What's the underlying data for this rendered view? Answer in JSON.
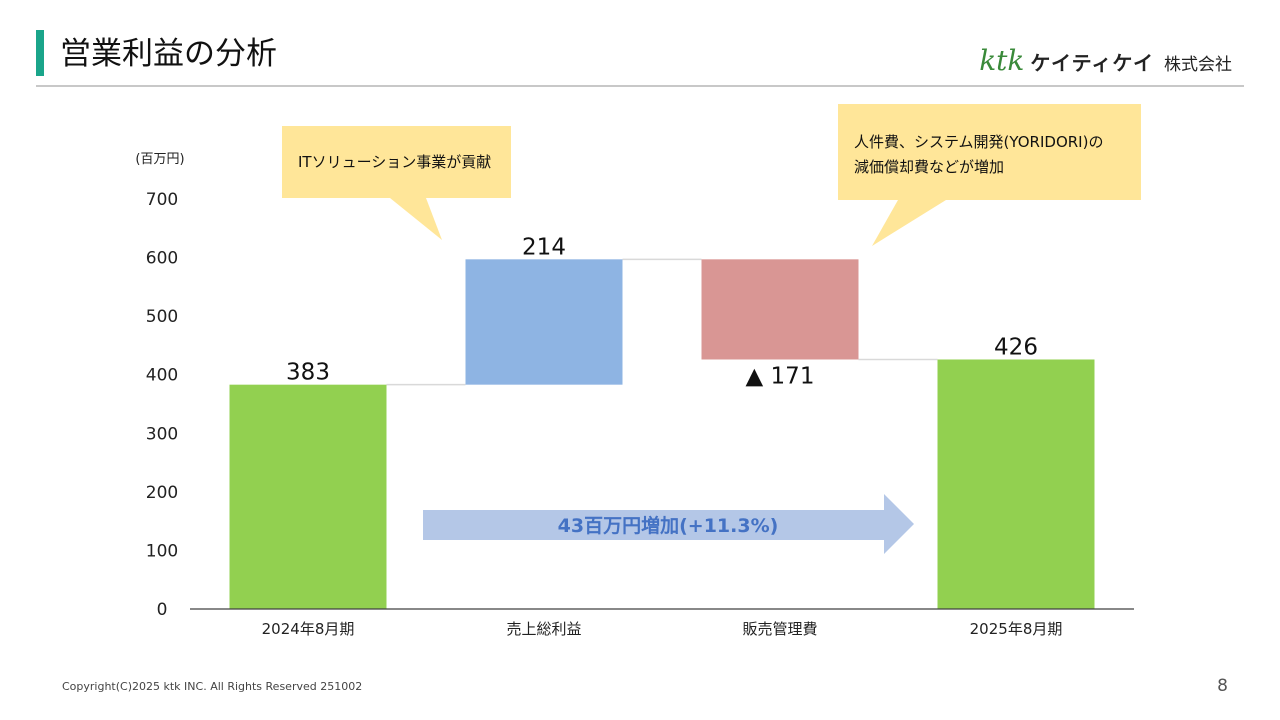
{
  "slide": {
    "title": "営業利益の分析",
    "logo": {
      "ktk": "ktk",
      "kana": "ケイティケイ",
      "corp": "株式会社"
    },
    "callout_left": "ITソリューション事業が貢献",
    "callout_right": "人件費、システム開発(YORIDORI)の\n減価償却費などが増加",
    "footer": "Copyright(C)2025 ktk INC. All Rights Reserved  251002",
    "page_number": "8"
  },
  "chart_data": {
    "type": "bar",
    "subtype": "waterfall",
    "unit_label": "(百万円)",
    "categories": [
      "2024年8月期",
      "売上総利益",
      "販売管理費",
      "2025年8月期"
    ],
    "bars": [
      {
        "kind": "total",
        "start": 0,
        "end": 383,
        "label": "383",
        "color": "#92d050"
      },
      {
        "kind": "increase",
        "start": 383,
        "end": 597,
        "label": "214",
        "color": "#8eb4e3"
      },
      {
        "kind": "decrease",
        "start": 597,
        "end": 426,
        "label": "▲ 171",
        "color": "#d99694"
      },
      {
        "kind": "total",
        "start": 0,
        "end": 426,
        "label": "426",
        "color": "#92d050"
      }
    ],
    "ylim": [
      0,
      700
    ],
    "yticks": [
      "0",
      "100",
      "200",
      "300",
      "400",
      "500",
      "600",
      "700"
    ],
    "ytick_values": [
      0,
      100,
      200,
      300,
      400,
      500,
      600,
      700
    ],
    "arrow_label": "43百万円増加(+11.3%)",
    "arrow_color": "#b4c7e7",
    "arrow_text_color": "#4472c4",
    "connector_color": "#d9d9d9",
    "axis_color": "#404040"
  }
}
